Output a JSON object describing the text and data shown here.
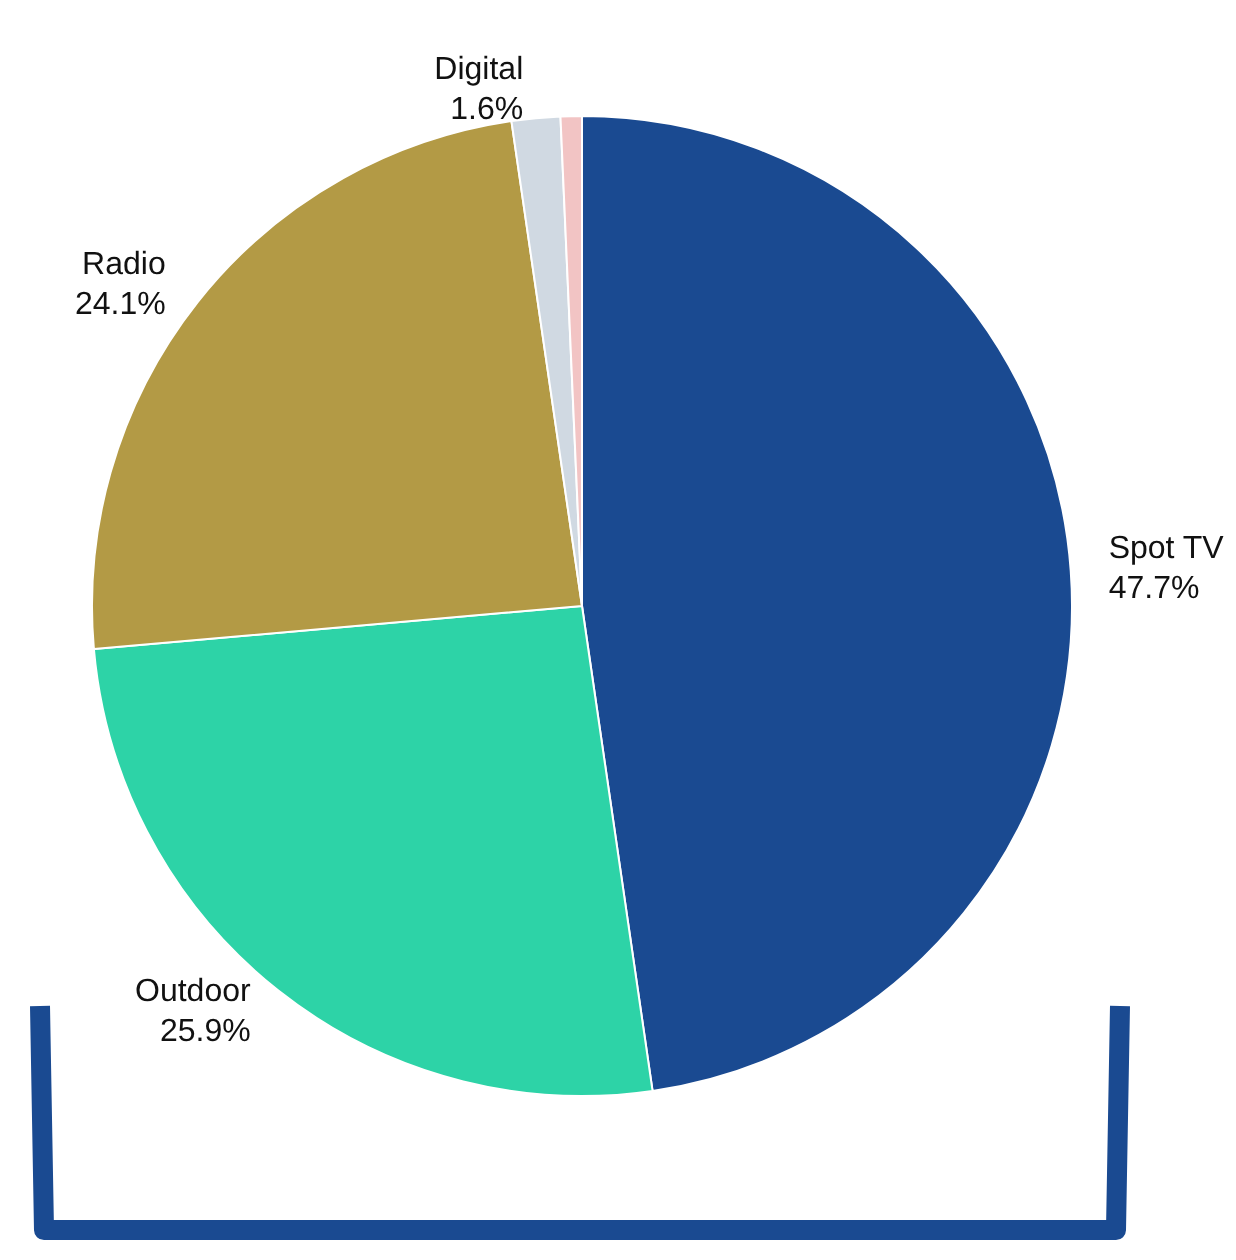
{
  "chart_data": {
    "type": "pie",
    "categories": [
      "Spot TV",
      "Outdoor",
      "Radio",
      "Digital",
      null
    ],
    "values": [
      47.7,
      25.9,
      24.1,
      1.6,
      0.7
    ],
    "value_labels": [
      "47.7%",
      "25.9%",
      "24.1%",
      "1.6%",
      null
    ],
    "colors": [
      "#1a4a91",
      "#2dd3a7",
      "#b39a45",
      "#d0d9e2",
      "#f2c4c4"
    ]
  }
}
